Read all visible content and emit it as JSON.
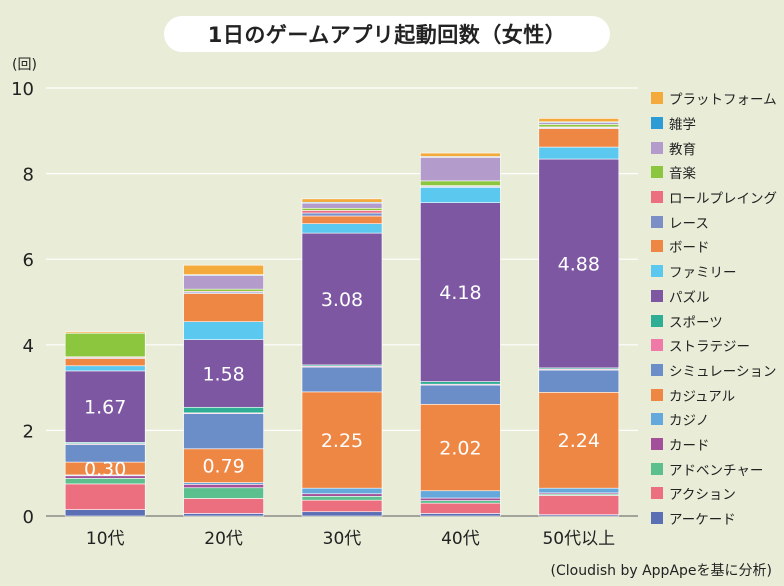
{
  "page": {
    "title": "1日のゲームアプリ起動回数（女性）",
    "unit_label": "(回)",
    "source": "(Cloudish by AppApeを基に分析)"
  },
  "chart_data": {
    "type": "bar",
    "stacked": true,
    "title": "1日のゲームアプリ起動回数（女性）",
    "ylabel": "(回)",
    "ylim": [
      0,
      10
    ],
    "yticks": [
      0,
      2,
      4,
      6,
      8,
      10
    ],
    "grid": true,
    "legend_position": "right",
    "categories": [
      "10代",
      "20代",
      "30代",
      "40代",
      "50代以上"
    ],
    "series": [
      {
        "name": "アーケード",
        "color": "#5b6fb5",
        "values": [
          0.15,
          0.06,
          0.1,
          0.06,
          0.03
        ]
      },
      {
        "name": "アクション",
        "color": "#eb6f7f",
        "values": [
          0.6,
          0.35,
          0.27,
          0.24,
          0.45
        ]
      },
      {
        "name": "アドベンチャー",
        "color": "#5cbf8e",
        "values": [
          0.13,
          0.25,
          0.09,
          0.06,
          0.03
        ]
      },
      {
        "name": "カード",
        "color": "#a3509a",
        "values": [
          0.06,
          0.08,
          0.06,
          0.06,
          0.03
        ]
      },
      {
        "name": "カジノ",
        "color": "#65a9dc",
        "values": [
          0.02,
          0.04,
          0.13,
          0.17,
          0.11
        ]
      },
      {
        "name": "カジュアル",
        "color": "#ef8744",
        "values": [
          0.3,
          0.79,
          2.25,
          2.02,
          2.24
        ]
      },
      {
        "name": "シミュレーション",
        "color": "#6b8ec9",
        "values": [
          0.41,
          0.82,
          0.58,
          0.45,
          0.52
        ]
      },
      {
        "name": "ストラテジー",
        "color": "#ef7aa8",
        "values": [
          0.02,
          0.02,
          0.02,
          0.02,
          0.02
        ]
      },
      {
        "name": "スポーツ",
        "color": "#2fae96",
        "values": [
          0.03,
          0.13,
          0.03,
          0.06,
          0.03
        ]
      },
      {
        "name": "パズル",
        "color": "#7e57a3",
        "values": [
          1.67,
          1.58,
          3.08,
          4.18,
          4.88
        ]
      },
      {
        "name": "ファミリー",
        "color": "#5bc8ef",
        "values": [
          0.12,
          0.42,
          0.22,
          0.36,
          0.28
        ]
      },
      {
        "name": "ボード",
        "color": "#ef8744",
        "values": [
          0.17,
          0.66,
          0.18,
          0.0,
          0.43
        ]
      },
      {
        "name": "レース",
        "color": "#7b8fc6",
        "values": [
          0.02,
          0.03,
          0.07,
          0.02,
          0.02
        ]
      },
      {
        "name": "ロールプレイング",
        "color": "#eb6f7f",
        "values": [
          0.02,
          0.02,
          0.06,
          0.02,
          0.02
        ]
      },
      {
        "name": "音楽",
        "color": "#8cc63f",
        "values": [
          0.55,
          0.05,
          0.05,
          0.11,
          0.06
        ]
      },
      {
        "name": "教育",
        "color": "#b39ccc",
        "values": [
          0.0,
          0.32,
          0.12,
          0.55,
          0.04
        ]
      },
      {
        "name": "雑学",
        "color": "#2c9bd6",
        "values": [
          0.0,
          0.02,
          0.02,
          0.02,
          0.02
        ]
      },
      {
        "name": "プラットフォーム",
        "color": "#f4a93b",
        "values": [
          0.03,
          0.22,
          0.08,
          0.08,
          0.08
        ]
      }
    ],
    "data_labels": [
      {
        "category": "10代",
        "series": "カジュアル",
        "text": "0.30"
      },
      {
        "category": "10代",
        "series": "パズル",
        "text": "1.67"
      },
      {
        "category": "20代",
        "series": "カジュアル",
        "text": "0.79"
      },
      {
        "category": "20代",
        "series": "パズル",
        "text": "1.58"
      },
      {
        "category": "30代",
        "series": "カジュアル",
        "text": "2.25"
      },
      {
        "category": "30代",
        "series": "パズル",
        "text": "3.08"
      },
      {
        "category": "40代",
        "series": "カジュアル",
        "text": "2.02"
      },
      {
        "category": "40代",
        "series": "パズル",
        "text": "4.18"
      },
      {
        "category": "50代以上",
        "series": "カジュアル",
        "text": "2.24"
      },
      {
        "category": "50代以上",
        "series": "パズル",
        "text": "4.88"
      }
    ]
  }
}
